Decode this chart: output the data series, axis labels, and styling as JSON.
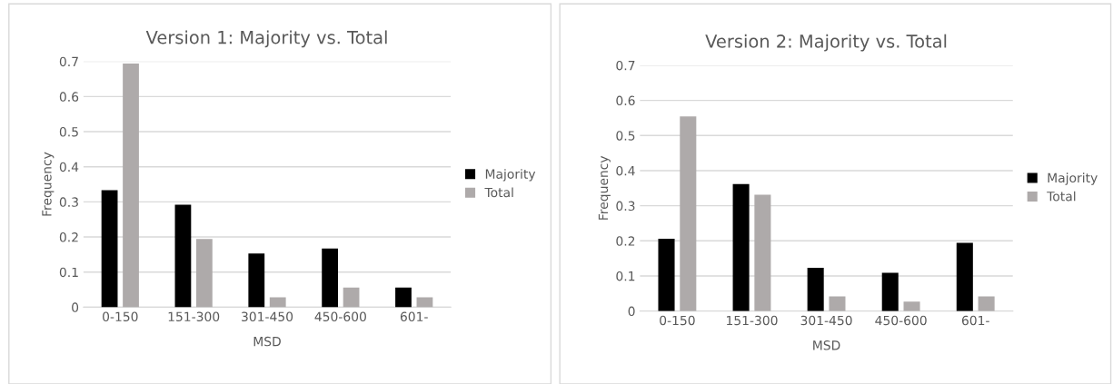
{
  "chart_data": [
    {
      "type": "bar",
      "title": "Version 1: Majority vs. Total",
      "xlabel": "MSD",
      "ylabel": "Frequency",
      "categories": [
        "0-150",
        "151-300",
        "301-450",
        "450-600",
        "601-"
      ],
      "series": [
        {
          "name": "Majority",
          "color": "#000000",
          "values": [
            0.333,
            0.292,
            0.153,
            0.167,
            0.056
          ]
        },
        {
          "name": "Total",
          "color": "#aeaaaa",
          "values": [
            0.694,
            0.194,
            0.028,
            0.056,
            0.028
          ]
        }
      ],
      "ylim": [
        0,
        0.7
      ],
      "yticks": [
        {
          "value": 0,
          "label": "0"
        },
        0.1,
        0.2,
        0.3,
        0.4,
        0.5,
        0.6,
        0.7
      ],
      "grid": "y",
      "legend": "right"
    },
    {
      "type": "bar",
      "title": "Version 2: Majority vs. Total",
      "xlabel": "MSD",
      "ylabel": "Frequency",
      "categories": [
        "0-150",
        "151-300",
        "301-450",
        "450-600",
        "601-"
      ],
      "series": [
        {
          "name": "Majority",
          "color": "#000000",
          "values": [
            0.206,
            0.362,
            0.123,
            0.109,
            0.194
          ]
        },
        {
          "name": "Total",
          "color": "#aeaaaa",
          "values": [
            0.554,
            0.331,
            0.042,
            0.027,
            0.042
          ]
        }
      ],
      "ylim": [
        0,
        0.7
      ],
      "yticks": [
        {
          "value": 0,
          "label": "0"
        },
        0.1,
        0.2,
        0.3,
        0.4,
        0.5,
        0.6,
        0.7
      ],
      "grid": "y",
      "legend": "right"
    }
  ]
}
